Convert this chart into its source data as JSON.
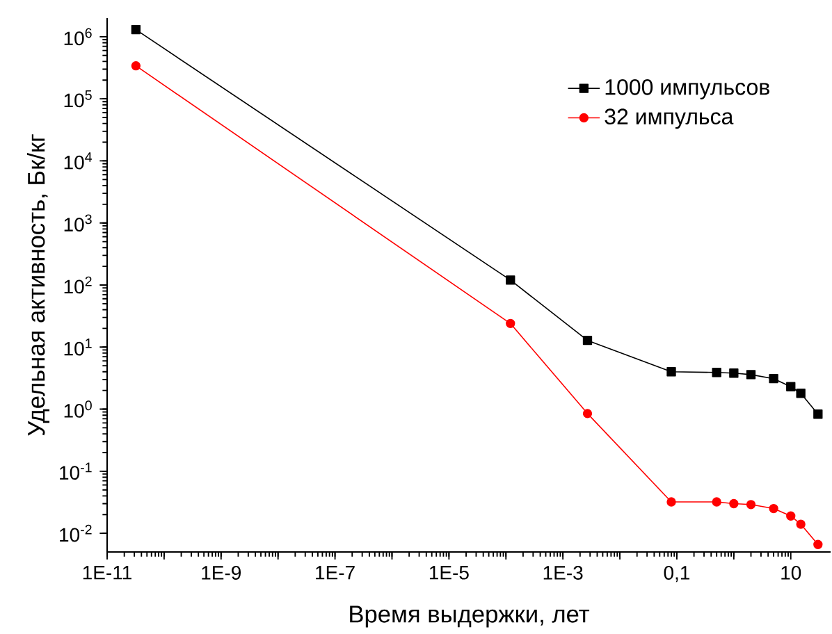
{
  "chart_data": {
    "type": "line",
    "xlabel": "Время выдержки, лет",
    "ylabel": "Удельная активность, Бк/кг",
    "log": "xy",
    "grid": false,
    "legend": "top right",
    "xlim": [
      1e-11,
      50
    ],
    "ylim": [
      0.005,
      2000000.0
    ],
    "xticks": [
      {
        "value": 1e-11,
        "label": "1E-11"
      },
      {
        "value": 1e-10,
        "label": null
      },
      {
        "value": 1e-09,
        "label": "1E-9"
      },
      {
        "value": 1e-08,
        "label": null
      },
      {
        "value": 1e-07,
        "label": "1E-7"
      },
      {
        "value": 1e-06,
        "label": null
      },
      {
        "value": 1e-05,
        "label": "1E-5"
      },
      {
        "value": 0.0001,
        "label": null
      },
      {
        "value": 0.001,
        "label": "1E-3"
      },
      {
        "value": 0.01,
        "label": null
      },
      {
        "value": 0.1,
        "label": "0,1"
      },
      {
        "value": 1,
        "label": null
      },
      {
        "value": 10,
        "label": "10"
      }
    ],
    "yticks": [
      {
        "value": 0.01,
        "label": "10$^{-2}$"
      },
      {
        "value": 0.1,
        "label": "10$^{-1}$"
      },
      {
        "value": 1,
        "label": "10$^{0}$"
      },
      {
        "value": 10,
        "label": "10$^{1}$"
      },
      {
        "value": 100,
        "label": "10$^{2}$"
      },
      {
        "value": 1000,
        "label": "10$^{3}$"
      },
      {
        "value": 10000,
        "label": "10$^{4}$"
      },
      {
        "value": 100000,
        "label": "10$^{5}$"
      },
      {
        "value": 1000000,
        "label": "10$^{6}$"
      }
    ],
    "series": [
      {
        "name": "1000 импульсов",
        "color": "#000000",
        "marker": "square",
        "x": [
          3.2e-11,
          0.00012,
          0.0027,
          0.08,
          0.5,
          1,
          2,
          5,
          10,
          15,
          30
        ],
        "values": [
          1300000.0,
          120,
          12.8,
          4.0,
          3.9,
          3.8,
          3.6,
          3.1,
          2.3,
          1.8,
          0.83
        ]
      },
      {
        "name": "32 импульса",
        "color": "#ff0000",
        "marker": "circle",
        "x": [
          3.2e-11,
          0.00012,
          0.0027,
          0.08,
          0.5,
          1,
          2,
          5,
          10,
          15,
          30
        ],
        "values": [
          340000.0,
          24,
          0.85,
          0.032,
          0.032,
          0.03,
          0.029,
          0.025,
          0.019,
          0.014,
          0.0066
        ]
      }
    ]
  }
}
